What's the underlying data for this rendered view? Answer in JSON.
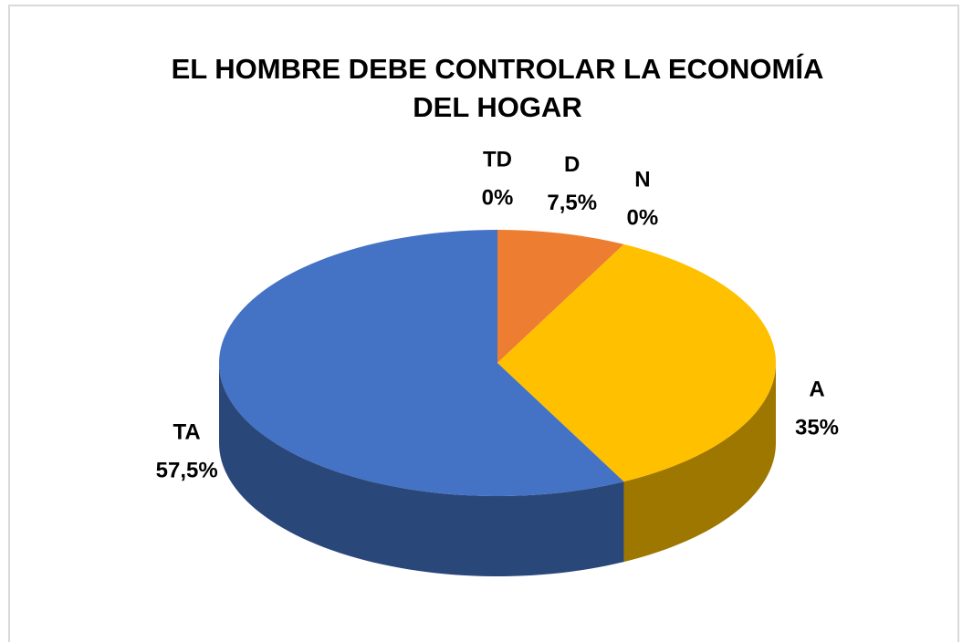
{
  "chart_data": {
    "type": "pie",
    "title": "EL HOMBRE DEBE CONTROLAR LA ECONOMÍA",
    "subtitle": "DEL HOGAR",
    "categories": [
      "TD",
      "D",
      "N",
      "A",
      "TA"
    ],
    "values": [
      0,
      7.5,
      0,
      35,
      57.5
    ],
    "value_labels": [
      "0%",
      "7,5%",
      "0%",
      "35%",
      "57,5%"
    ],
    "colors": [
      "#a5a5a5",
      "#ed7d31",
      "#a5a5a5",
      "#ffc000",
      "#4472c4"
    ]
  }
}
